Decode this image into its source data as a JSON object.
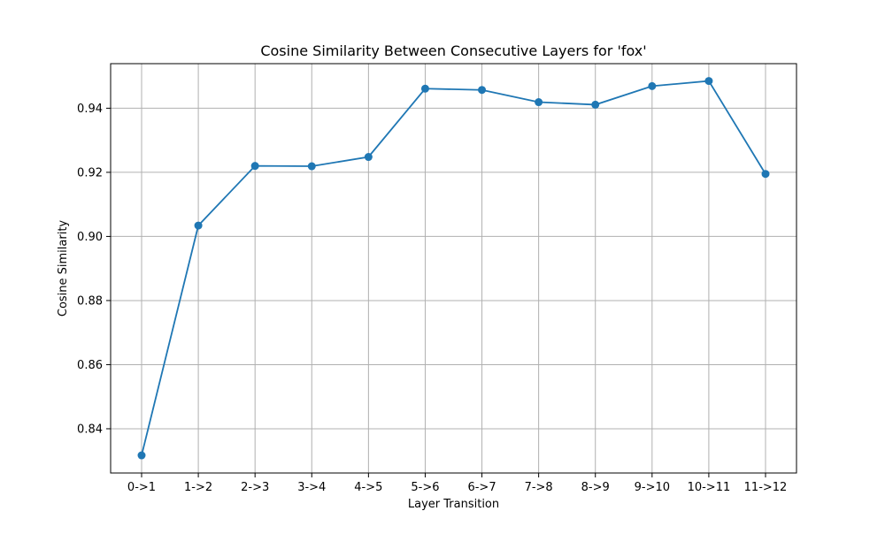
{
  "chart_data": {
    "type": "line",
    "title": "Cosine Similarity Between Consecutive Layers for 'fox'",
    "xlabel": "Layer Transition",
    "ylabel": "Cosine Similarity",
    "categories": [
      "0->1",
      "1->2",
      "2->3",
      "3->4",
      "4->5",
      "5->6",
      "6->7",
      "7->8",
      "8->9",
      "9->10",
      "10->11",
      "11->12"
    ],
    "series": [
      {
        "values": [
          0.8317,
          0.9034,
          0.922,
          0.9219,
          0.9248,
          0.9461,
          0.9457,
          0.9419,
          0.9411,
          0.9469,
          0.9485,
          0.9195
        ]
      }
    ],
    "ylim": [
      0.8262,
      0.9539
    ],
    "yticks": [
      0.84,
      0.86,
      0.88,
      0.9,
      0.92,
      0.94
    ],
    "ytick_labels": [
      "0.84",
      "0.86",
      "0.88",
      "0.90",
      "0.92",
      "0.94"
    ],
    "grid": true,
    "legend": "none",
    "colors": {
      "line": "#1f77b4",
      "grid": "#b0b0b0",
      "axes": "#000000"
    }
  }
}
